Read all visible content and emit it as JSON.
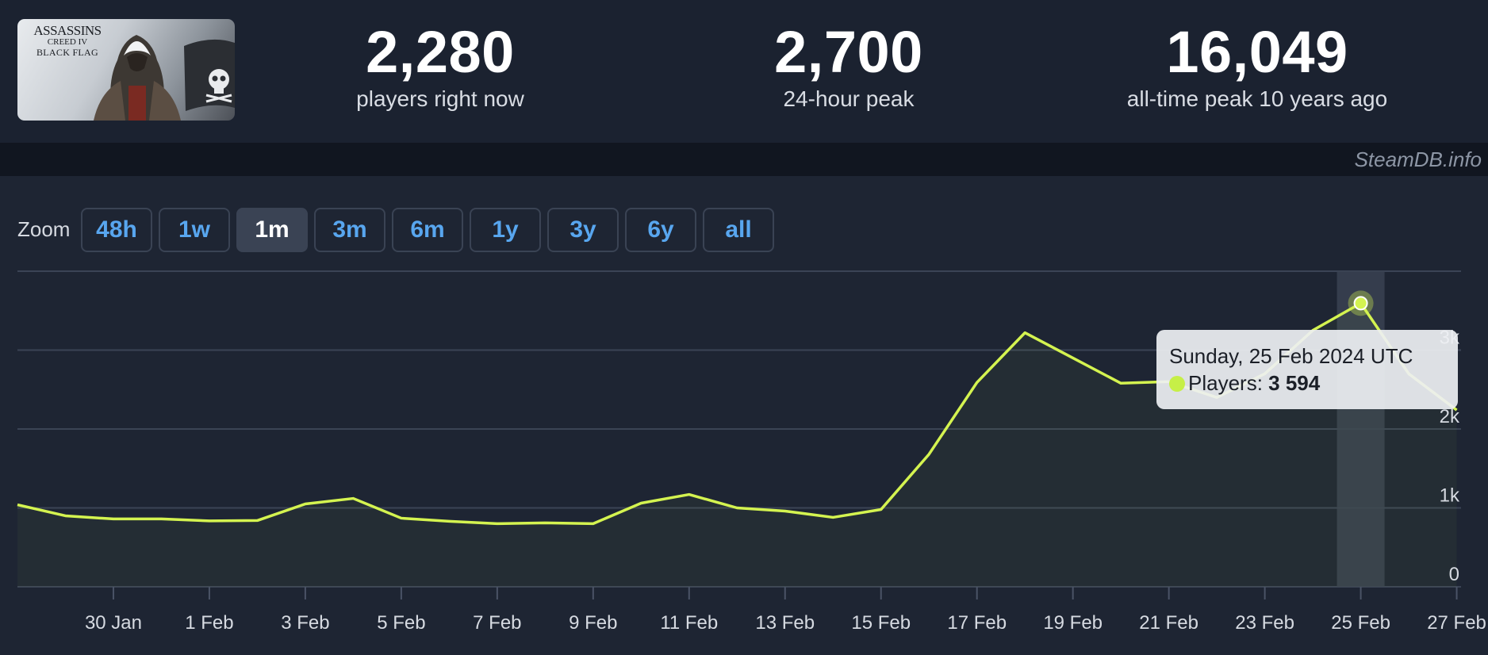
{
  "header": {
    "cover": {
      "title_line1": "ASSASSINS",
      "title_line2": "CREED IV",
      "title_line3": "BLACK FLAG"
    },
    "stats": [
      {
        "value": "2,280",
        "label": "players right now"
      },
      {
        "value": "2,700",
        "label": "24-hour peak"
      },
      {
        "value": "16,049",
        "label": "all-time peak 10 years ago"
      }
    ]
  },
  "watermark": "SteamDB.info",
  "zoom": {
    "label": "Zoom",
    "options": [
      "48h",
      "1w",
      "1m",
      "3m",
      "6m",
      "1y",
      "3y",
      "6y",
      "all"
    ],
    "selected": "1m"
  },
  "colors": {
    "line": "#d4f350",
    "accent_blue": "#58a6ef",
    "panel": "#1e2533"
  },
  "tooltip": {
    "date": "Sunday, 25 Feb 2024 UTC",
    "series_label": "Players:",
    "value": "3 594"
  },
  "chart_data": {
    "type": "line",
    "title": "",
    "xlabel": "",
    "ylabel": "",
    "ylim": [
      0,
      4000
    ],
    "y_ticks": [
      {
        "value": 0,
        "label": "0"
      },
      {
        "value": 1000,
        "label": "1k"
      },
      {
        "value": 2000,
        "label": "2k"
      },
      {
        "value": 3000,
        "label": "3k"
      }
    ],
    "x_ticks": [
      "30 Jan",
      "1 Feb",
      "3 Feb",
      "5 Feb",
      "7 Feb",
      "9 Feb",
      "11 Feb",
      "13 Feb",
      "15 Feb",
      "17 Feb",
      "19 Feb",
      "21 Feb",
      "23 Feb",
      "25 Feb",
      "27 Feb"
    ],
    "grid": true,
    "highlight_index": 28,
    "series": [
      {
        "x": [
          "28 Jan",
          "29 Jan",
          "30 Jan",
          "31 Jan",
          "1 Feb",
          "2 Feb",
          "3 Feb",
          "4 Feb",
          "5 Feb",
          "6 Feb",
          "7 Feb",
          "8 Feb",
          "9 Feb",
          "10 Feb",
          "11 Feb",
          "12 Feb",
          "13 Feb",
          "14 Feb",
          "15 Feb",
          "16 Feb",
          "17 Feb",
          "18 Feb",
          "19 Feb",
          "20 Feb",
          "21 Feb",
          "22 Feb",
          "23 Feb",
          "24 Feb",
          "25 Feb",
          "26 Feb",
          "27 Feb"
        ],
        "values": [
          1040,
          900,
          860,
          860,
          835,
          840,
          1050,
          1120,
          870,
          830,
          800,
          810,
          800,
          1060,
          1170,
          1000,
          960,
          880,
          980,
          1680,
          2590,
          3220,
          2900,
          2580,
          2600,
          2400,
          2700,
          3250,
          3594,
          2700,
          2240
        ]
      }
    ]
  }
}
